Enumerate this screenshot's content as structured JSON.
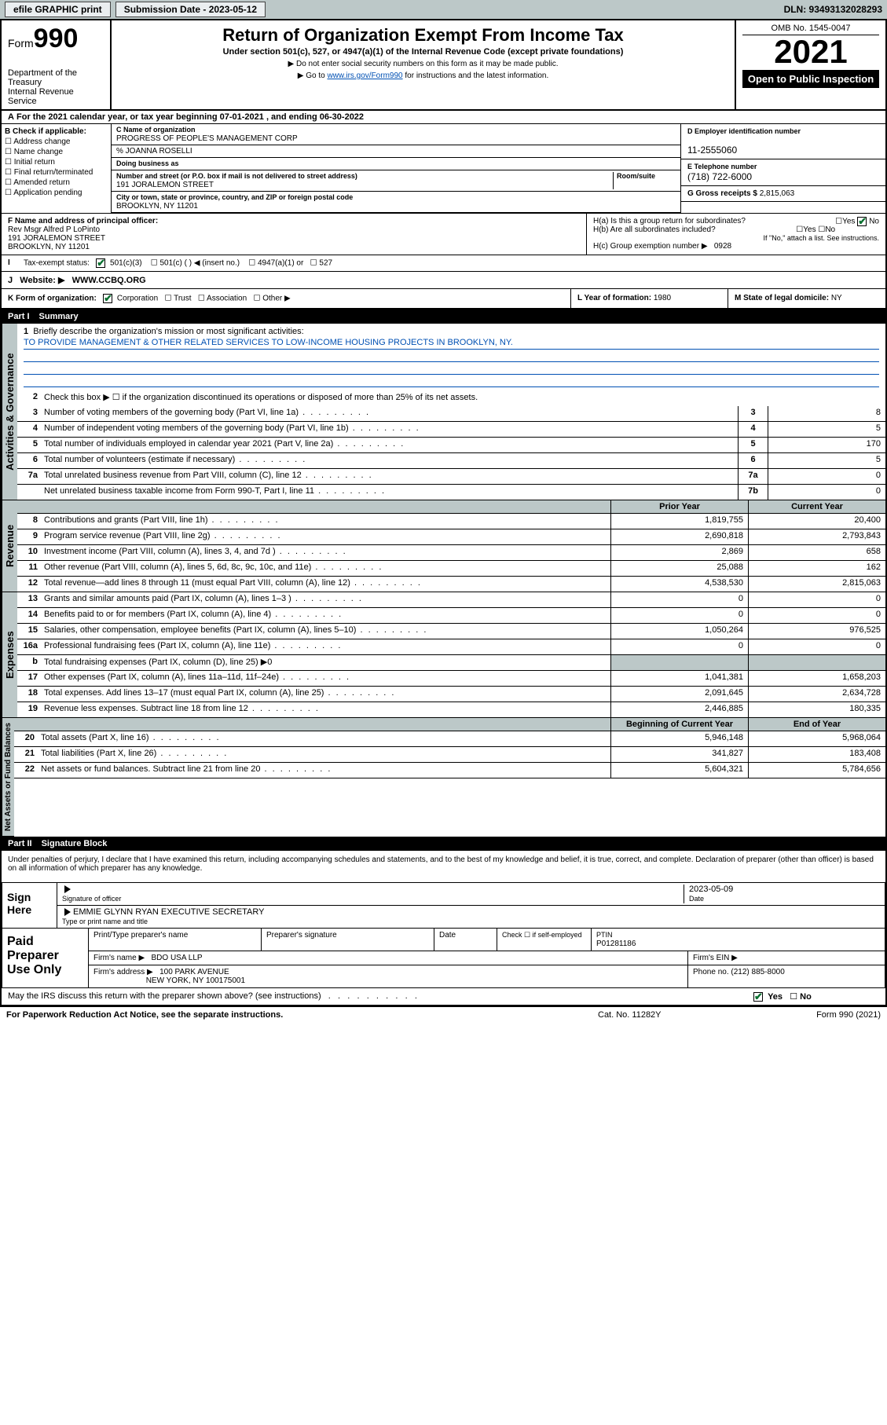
{
  "topbar": {
    "efile": "efile GRAPHIC print",
    "subdate_lbl": "Submission Date - 2023-05-12",
    "dln": "DLN: 93493132028293"
  },
  "header": {
    "form_word": "Form",
    "form_num": "990",
    "title": "Return of Organization Exempt From Income Tax",
    "sub1": "Under section 501(c), 527, or 4947(a)(1) of the Internal Revenue Code (except private foundations)",
    "sub2": "▶ Do not enter social security numbers on this form as it may be made public.",
    "sub3_pre": "▶ Go to ",
    "sub3_link": "www.irs.gov/Form990",
    "sub3_post": " for instructions and the latest information.",
    "omb": "OMB No. 1545-0047",
    "year": "2021",
    "inspect": "Open to Public Inspection",
    "dept": "Department of the Treasury",
    "irs": "Internal Revenue Service"
  },
  "A": "For the 2021 calendar year, or tax year beginning 07-01-2021  , and ending 06-30-2022",
  "B": {
    "label": "B Check if applicable:",
    "opts": [
      "Address change",
      "Name change",
      "Initial return",
      "Final return/terminated",
      "Amended return",
      "Application pending"
    ]
  },
  "C": {
    "name_lbl": "C Name of organization",
    "name": "PROGRESS OF PEOPLE'S MANAGEMENT CORP",
    "care_lbl": "% JOANNA ROSELLI",
    "dba_lbl": "Doing business as",
    "addr_lbl": "Number and street (or P.O. box if mail is not delivered to street address)",
    "room_lbl": "Room/suite",
    "addr": "191 JORALEMON STREET",
    "city_lbl": "City or town, state or province, country, and ZIP or foreign postal code",
    "city": "BROOKLYN, NY  11201"
  },
  "D": {
    "lbl": "D Employer identification number",
    "val": "11-2555060"
  },
  "E": {
    "lbl": "E Telephone number",
    "val": "(718) 722-6000"
  },
  "G": {
    "lbl": "G Gross receipts $",
    "val": "2,815,063"
  },
  "F": {
    "lbl": "F Name and address of principal officer:",
    "name": "Rev Msgr Alfred P LoPinto",
    "addr1": "191 JORALEMON STREET",
    "addr2": "BROOKLYN, NY  11201"
  },
  "H": {
    "a": "H(a)  Is this a group return for subordinates?",
    "b": "H(b)  Are all subordinates included?",
    "bnote": "If \"No,\" attach a list. See instructions.",
    "c_lbl": "H(c)  Group exemption number ▶",
    "c_val": "0928",
    "yes": "Yes",
    "no": "No"
  },
  "I": {
    "lbl": "Tax-exempt status:",
    "opt1": "501(c)(3)",
    "opt2": "501(c) (   ) ◀ (insert no.)",
    "opt3": "4947(a)(1) or",
    "opt4": "527"
  },
  "J": {
    "lbl": "Website: ▶",
    "val": "WWW.CCBQ.ORG"
  },
  "K": {
    "lbl": "K Form of organization:",
    "opts": [
      "Corporation",
      "Trust",
      "Association",
      "Other ▶"
    ]
  },
  "L": {
    "lbl": "L Year of formation:",
    "val": "1980"
  },
  "M": {
    "lbl": "M State of legal domicile:",
    "val": "NY"
  },
  "part1": {
    "num": "Part I",
    "title": "Summary"
  },
  "mission_lbl": "Briefly describe the organization's mission or most significant activities:",
  "mission": "TO PROVIDE MANAGEMENT & OTHER RELATED SERVICES TO LOW-INCOME HOUSING PROJECTS IN BROOKLYN, NY.",
  "line2": "Check this box ▶ ☐  if the organization discontinued its operations or disposed of more than 25% of its net assets.",
  "govlines": [
    {
      "n": "3",
      "d": "Number of voting members of the governing body (Part VI, line 1a)",
      "b": "3",
      "v": "8"
    },
    {
      "n": "4",
      "d": "Number of independent voting members of the governing body (Part VI, line 1b)",
      "b": "4",
      "v": "5"
    },
    {
      "n": "5",
      "d": "Total number of individuals employed in calendar year 2021 (Part V, line 2a)",
      "b": "5",
      "v": "170"
    },
    {
      "n": "6",
      "d": "Total number of volunteers (estimate if necessary)",
      "b": "6",
      "v": "5"
    },
    {
      "n": "7a",
      "d": "Total unrelated business revenue from Part VIII, column (C), line 12",
      "b": "7a",
      "v": "0"
    },
    {
      "n": "",
      "d": "Net unrelated business taxable income from Form 990-T, Part I, line 11",
      "b": "7b",
      "v": "0"
    }
  ],
  "revhdr": {
    "prior": "Prior Year",
    "curr": "Current Year"
  },
  "revenue": [
    {
      "n": "8",
      "d": "Contributions and grants (Part VIII, line 1h)",
      "p": "1,819,755",
      "c": "20,400"
    },
    {
      "n": "9",
      "d": "Program service revenue (Part VIII, line 2g)",
      "p": "2,690,818",
      "c": "2,793,843"
    },
    {
      "n": "10",
      "d": "Investment income (Part VIII, column (A), lines 3, 4, and 7d )",
      "p": "2,869",
      "c": "658"
    },
    {
      "n": "11",
      "d": "Other revenue (Part VIII, column (A), lines 5, 6d, 8c, 9c, 10c, and 11e)",
      "p": "25,088",
      "c": "162"
    },
    {
      "n": "12",
      "d": "Total revenue—add lines 8 through 11 (must equal Part VIII, column (A), line 12)",
      "p": "4,538,530",
      "c": "2,815,063"
    }
  ],
  "expenses": [
    {
      "n": "13",
      "d": "Grants and similar amounts paid (Part IX, column (A), lines 1–3 )",
      "p": "0",
      "c": "0"
    },
    {
      "n": "14",
      "d": "Benefits paid to or for members (Part IX, column (A), line 4)",
      "p": "0",
      "c": "0"
    },
    {
      "n": "15",
      "d": "Salaries, other compensation, employee benefits (Part IX, column (A), lines 5–10)",
      "p": "1,050,264",
      "c": "976,525"
    },
    {
      "n": "16a",
      "d": "Professional fundraising fees (Part IX, column (A), line 11e)",
      "p": "0",
      "c": "0"
    },
    {
      "n": "b",
      "d": "Total fundraising expenses (Part IX, column (D), line 25) ▶0",
      "p": "",
      "c": "",
      "shade": true
    },
    {
      "n": "17",
      "d": "Other expenses (Part IX, column (A), lines 11a–11d, 11f–24e)",
      "p": "1,041,381",
      "c": "1,658,203"
    },
    {
      "n": "18",
      "d": "Total expenses. Add lines 13–17 (must equal Part IX, column (A), line 25)",
      "p": "2,091,645",
      "c": "2,634,728"
    },
    {
      "n": "19",
      "d": "Revenue less expenses. Subtract line 18 from line 12",
      "p": "2,446,885",
      "c": "180,335"
    }
  ],
  "nethdr": {
    "beg": "Beginning of Current Year",
    "end": "End of Year"
  },
  "net": [
    {
      "n": "20",
      "d": "Total assets (Part X, line 16)",
      "p": "5,946,148",
      "c": "5,968,064"
    },
    {
      "n": "21",
      "d": "Total liabilities (Part X, line 26)",
      "p": "341,827",
      "c": "183,408"
    },
    {
      "n": "22",
      "d": "Net assets or fund balances. Subtract line 21 from line 20",
      "p": "5,604,321",
      "c": "5,784,656"
    }
  ],
  "sidelabels": {
    "gov": "Activities & Governance",
    "rev": "Revenue",
    "exp": "Expenses",
    "net": "Net Assets or Fund Balances"
  },
  "part2": {
    "num": "Part II",
    "title": "Signature Block"
  },
  "penalty": "Under penalties of perjury, I declare that I have examined this return, including accompanying schedules and statements, and to the best of my knowledge and belief, it is true, correct, and complete. Declaration of preparer (other than officer) is based on all information of which preparer has any knowledge.",
  "sign": {
    "here": "Sign Here",
    "sig_lbl": "Signature of officer",
    "date_lbl": "Date",
    "date": "2023-05-09",
    "name": "EMMIE GLYNN RYAN  EXECUTIVE SECRETARY",
    "name_lbl": "Type or print name and title"
  },
  "paid": {
    "lbl": "Paid Preparer Use Only",
    "h1": "Print/Type preparer's name",
    "h2": "Preparer's signature",
    "h3": "Date",
    "h4_pre": "Check ☐ if self-employed",
    "h5_lbl": "PTIN",
    "h5": "P01281186",
    "firm_lbl": "Firm's name  ▶",
    "firm": "BDO USA LLP",
    "ein_lbl": "Firm's EIN ▶",
    "addr_lbl": "Firm's address ▶",
    "addr1": "100 PARK AVENUE",
    "addr2": "NEW YORK, NY  100175001",
    "phone_lbl": "Phone no.",
    "phone": "(212) 885-8000"
  },
  "discuss": "May the IRS discuss this return with the preparer shown above? (see instructions)",
  "footer": {
    "l": "For Paperwork Reduction Act Notice, see the separate instructions.",
    "m": "Cat. No. 11282Y",
    "r": "Form 990 (2021)"
  }
}
